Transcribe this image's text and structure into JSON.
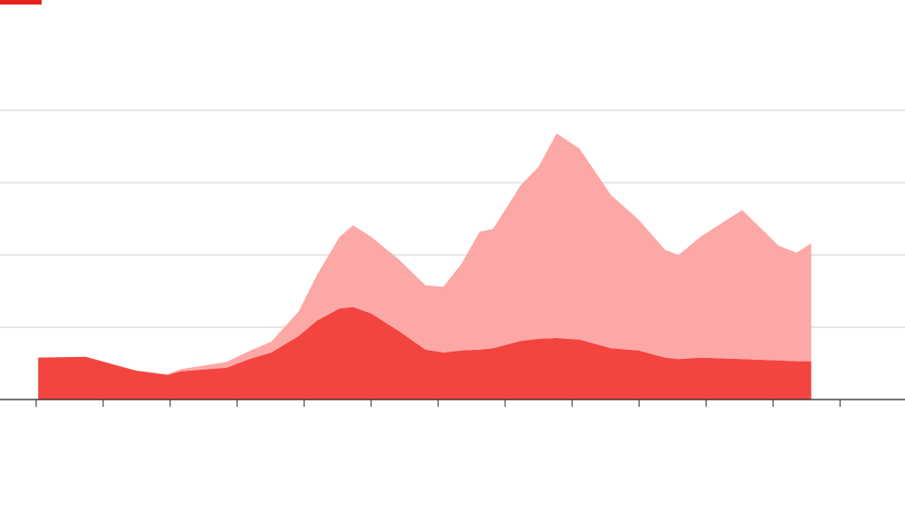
{
  "chart_data": {
    "type": "area",
    "stacked": true,
    "x": [
      0.03,
      0.74,
      1.49,
      1.96,
      2.16,
      2.84,
      3.18,
      3.51,
      3.92,
      4.19,
      4.53,
      4.73,
      5.0,
      5.41,
      5.81,
      6.08,
      6.35,
      6.62,
      6.82,
      7.23,
      7.5,
      7.77,
      8.11,
      8.58,
      8.99,
      9.39,
      9.59,
      9.93,
      10.54,
      11.08,
      11.35,
      11.57
    ],
    "series": [
      {
        "color": "#f4443f",
        "values": [
          0.58,
          0.59,
          0.4,
          0.34,
          0.39,
          0.44,
          0.56,
          0.65,
          0.88,
          1.09,
          1.26,
          1.28,
          1.19,
          0.95,
          0.69,
          0.65,
          0.68,
          0.69,
          0.71,
          0.81,
          0.84,
          0.85,
          0.83,
          0.71,
          0.68,
          0.58,
          0.56,
          0.58,
          0.56,
          0.54,
          0.53,
          0.53
        ]
      },
      {
        "color": "#fca8a6",
        "values": [
          0,
          0,
          0,
          0.01,
          0.03,
          0.08,
          0.11,
          0.15,
          0.34,
          0.63,
          0.99,
          1.13,
          1.06,
          0.99,
          0.89,
          0.91,
          1.2,
          1.63,
          1.65,
          2.15,
          2.38,
          2.83,
          2.64,
          2.12,
          1.81,
          1.49,
          1.44,
          1.68,
          2.06,
          1.59,
          1.5,
          1.63
        ]
      }
    ],
    "xlim": [
      -0.54,
      12.97
    ],
    "xticks": [
      0,
      1,
      2,
      3,
      4,
      5,
      6,
      7,
      8,
      9,
      10,
      11,
      12
    ],
    "ylim": [
      0,
      4
    ],
    "yticks": [
      1,
      2,
      3,
      4
    ],
    "grid": true
  }
}
